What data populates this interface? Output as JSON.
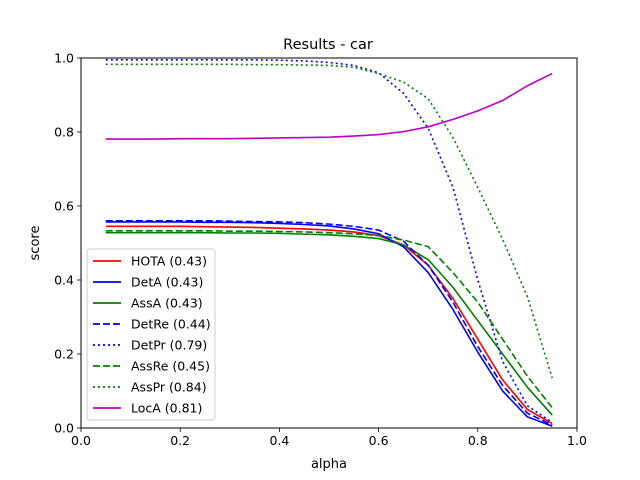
{
  "chart_data": {
    "type": "line",
    "title": "Results - car",
    "xlabel": "alpha",
    "ylabel": "score",
    "xlim": [
      0.0,
      1.0
    ],
    "ylim": [
      0.0,
      1.0
    ],
    "xticks": [
      "0.0",
      "0.2",
      "0.4",
      "0.6",
      "0.8",
      "1.0"
    ],
    "yticks": [
      "0.0",
      "0.2",
      "0.4",
      "0.6",
      "0.8",
      "1.0"
    ],
    "grid": false,
    "legend_position": "lower-left",
    "x": [
      0.05,
      0.1,
      0.15,
      0.2,
      0.25,
      0.3,
      0.35,
      0.4,
      0.45,
      0.5,
      0.55,
      0.6,
      0.65,
      0.7,
      0.75,
      0.8,
      0.85,
      0.9,
      0.95
    ],
    "series": [
      {
        "name": "HOTA (0.43)",
        "color": "#ff0000",
        "style": "solid",
        "values": [
          0.545,
          0.545,
          0.545,
          0.545,
          0.544,
          0.543,
          0.542,
          0.54,
          0.538,
          0.535,
          0.53,
          0.52,
          0.495,
          0.44,
          0.35,
          0.24,
          0.13,
          0.05,
          0.012
        ]
      },
      {
        "name": "DetA (0.43)",
        "color": "#0000ff",
        "style": "solid",
        "values": [
          0.557,
          0.557,
          0.557,
          0.557,
          0.556,
          0.556,
          0.555,
          0.553,
          0.55,
          0.546,
          0.538,
          0.525,
          0.49,
          0.42,
          0.32,
          0.205,
          0.1,
          0.03,
          0.005
        ]
      },
      {
        "name": "AssA (0.43)",
        "color": "#008000",
        "style": "solid",
        "values": [
          0.528,
          0.528,
          0.528,
          0.528,
          0.528,
          0.527,
          0.527,
          0.526,
          0.524,
          0.522,
          0.518,
          0.512,
          0.495,
          0.455,
          0.38,
          0.29,
          0.2,
          0.11,
          0.035
        ]
      },
      {
        "name": "DetRe (0.44)",
        "color": "#0000ff",
        "style": "dashed",
        "values": [
          0.56,
          0.56,
          0.56,
          0.56,
          0.56,
          0.559,
          0.558,
          0.557,
          0.555,
          0.551,
          0.545,
          0.535,
          0.505,
          0.44,
          0.34,
          0.22,
          0.115,
          0.04,
          0.008
        ]
      },
      {
        "name": "DetPr (0.79)",
        "color": "#0000ff",
        "style": "dotted",
        "values": [
          0.995,
          0.995,
          0.995,
          0.995,
          0.995,
          0.995,
          0.995,
          0.994,
          0.992,
          0.988,
          0.98,
          0.96,
          0.905,
          0.81,
          0.65,
          0.4,
          0.18,
          0.06,
          0.015
        ]
      },
      {
        "name": "AssRe (0.45)",
        "color": "#008000",
        "style": "dashed",
        "values": [
          0.533,
          0.533,
          0.533,
          0.533,
          0.533,
          0.532,
          0.532,
          0.531,
          0.53,
          0.528,
          0.525,
          0.52,
          0.508,
          0.49,
          0.42,
          0.34,
          0.24,
          0.14,
          0.055
        ]
      },
      {
        "name": "AssPr (0.84)",
        "color": "#008000",
        "style": "dotted",
        "values": [
          0.983,
          0.983,
          0.983,
          0.983,
          0.983,
          0.983,
          0.982,
          0.982,
          0.981,
          0.98,
          0.975,
          0.958,
          0.935,
          0.89,
          0.785,
          0.65,
          0.51,
          0.355,
          0.135
        ]
      },
      {
        "name": "LocA (0.81)",
        "color": "#bf00bf",
        "style": "solid",
        "values": [
          0.781,
          0.781,
          0.781,
          0.782,
          0.782,
          0.782,
          0.783,
          0.784,
          0.785,
          0.786,
          0.789,
          0.793,
          0.801,
          0.814,
          0.834,
          0.857,
          0.885,
          0.925,
          0.958
        ]
      }
    ]
  }
}
